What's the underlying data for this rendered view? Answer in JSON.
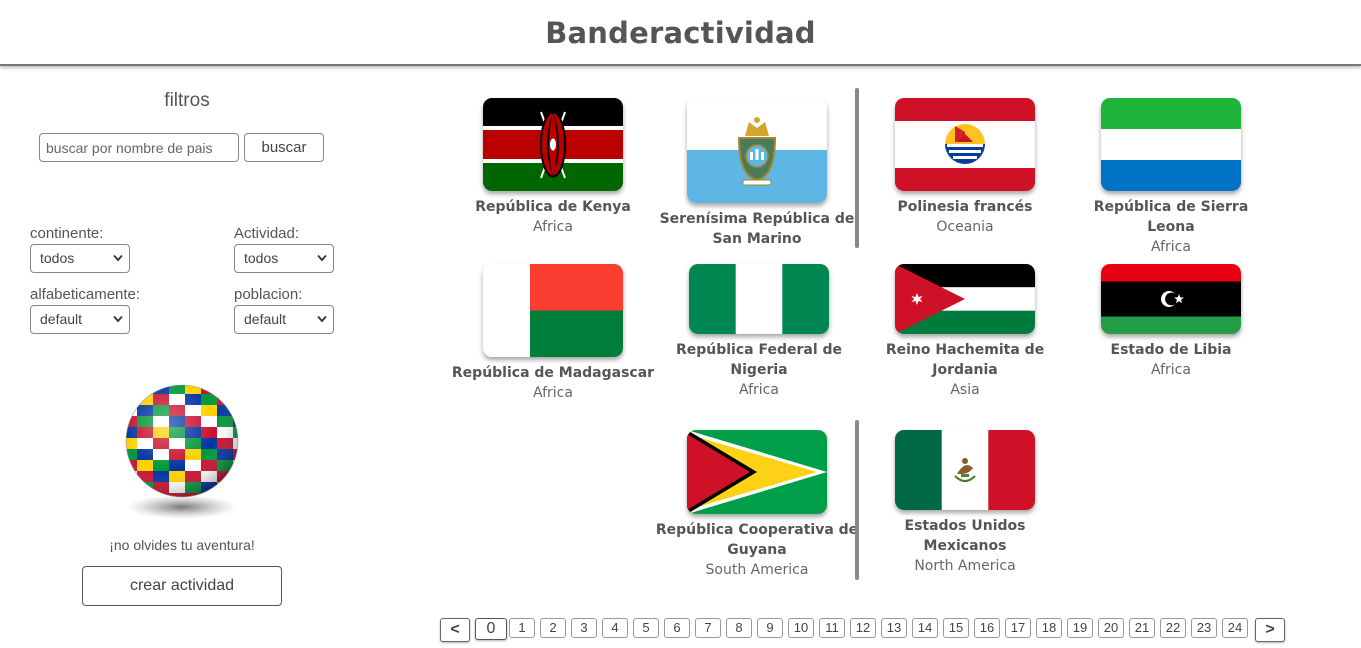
{
  "header": {
    "title": "Banderactividad"
  },
  "filters": {
    "title": "filtros",
    "search_placeholder": "buscar por nombre de pais",
    "search_button": "buscar",
    "continent_label": "continente:",
    "continent_value": "todos",
    "activity_label": "Actividad:",
    "activity_value": "todos",
    "alpha_label": "alfabeticamente:",
    "alpha_value": "default",
    "population_label": "poblacion:",
    "population_value": "default"
  },
  "promo": {
    "tagline": "¡no olvides tu aventura!",
    "create_button": "crear actividad"
  },
  "countries": [
    {
      "name": "República de Kenya",
      "continent": "Africa",
      "flag": "kenya-flag-icon"
    },
    {
      "name": "Serenísima República de San Marino",
      "continent": "",
      "flag": "san-marino-flag-icon"
    },
    {
      "name": "Polinesia francés",
      "continent": "Oceania",
      "flag": "french-polynesia-flag-icon"
    },
    {
      "name": "República de Sierra Leona",
      "continent": "Africa",
      "flag": "sierra-leone-flag-icon"
    },
    {
      "name": "República de Madagascar",
      "continent": "Africa",
      "flag": "madagascar-flag-icon"
    },
    {
      "name": "República Federal de Nigeria",
      "continent": "Africa",
      "flag": "nigeria-flag-icon"
    },
    {
      "name": "Reino Hachemita de Jordania",
      "continent": "Asia",
      "flag": "jordan-flag-icon"
    },
    {
      "name": "Estado de Libia",
      "continent": "Africa",
      "flag": "libya-flag-icon"
    },
    {
      "name": "República Cooperativa de Guyana",
      "continent": "South America",
      "flag": "guyana-flag-icon"
    },
    {
      "name": "Estados Unidos Mexicanos",
      "continent": "North America",
      "flag": "mexico-flag-icon"
    }
  ],
  "pagination": {
    "prev": "<",
    "next": ">",
    "current": "0",
    "pages": [
      "0",
      "1",
      "2",
      "3",
      "4",
      "5",
      "6",
      "7",
      "8",
      "9",
      "10",
      "11",
      "12",
      "13",
      "14",
      "15",
      "16",
      "17",
      "18",
      "19",
      "20",
      "21",
      "22",
      "23",
      "24"
    ]
  },
  "colors": {
    "header_text": "#555555",
    "border": "#888888"
  }
}
